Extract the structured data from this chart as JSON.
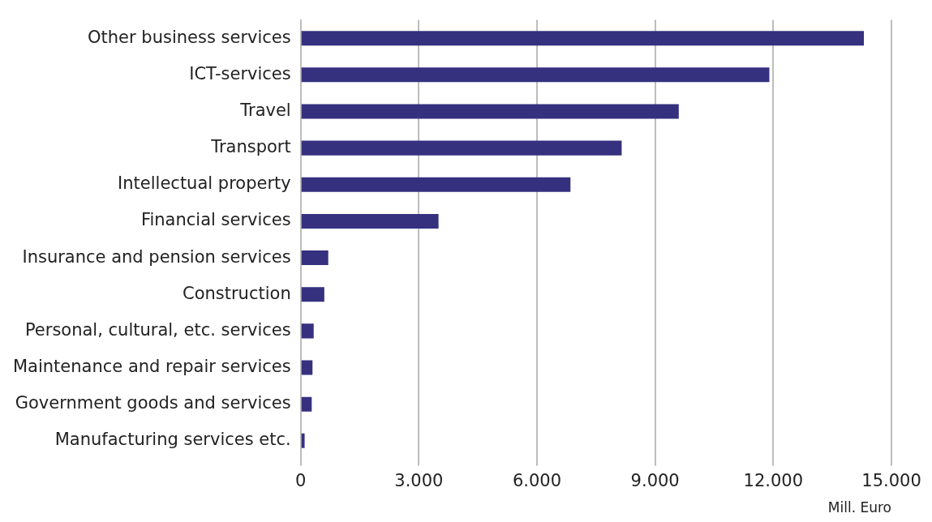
{
  "chart_data": {
    "type": "bar",
    "orientation": "horizontal",
    "xlabel": "Mill. Euro",
    "categories": [
      "Other business services",
      "ICT-services",
      "Travel",
      "Transport",
      "Intellectual property",
      "Financial services",
      "Insurance and pension services",
      "Construction",
      "Personal, cultural, etc. services",
      "Maintenance and repair services",
      "Government goods and services",
      "Manufacturing services etc."
    ],
    "values": [
      14300,
      11900,
      9600,
      8150,
      6850,
      3500,
      700,
      600,
      330,
      300,
      280,
      100
    ],
    "color": "#35317f",
    "xlim": [
      0,
      15000
    ],
    "xticks": [
      {
        "value": 0,
        "label": "0"
      },
      {
        "value": 3000,
        "label": "3.000"
      },
      {
        "value": 6000,
        "label": "6.000"
      },
      {
        "value": 9000,
        "label": "9.000"
      },
      {
        "value": 12000,
        "label": "12.000"
      },
      {
        "value": 15000,
        "label": "15.000"
      }
    ],
    "grid": "x",
    "legend": false
  }
}
